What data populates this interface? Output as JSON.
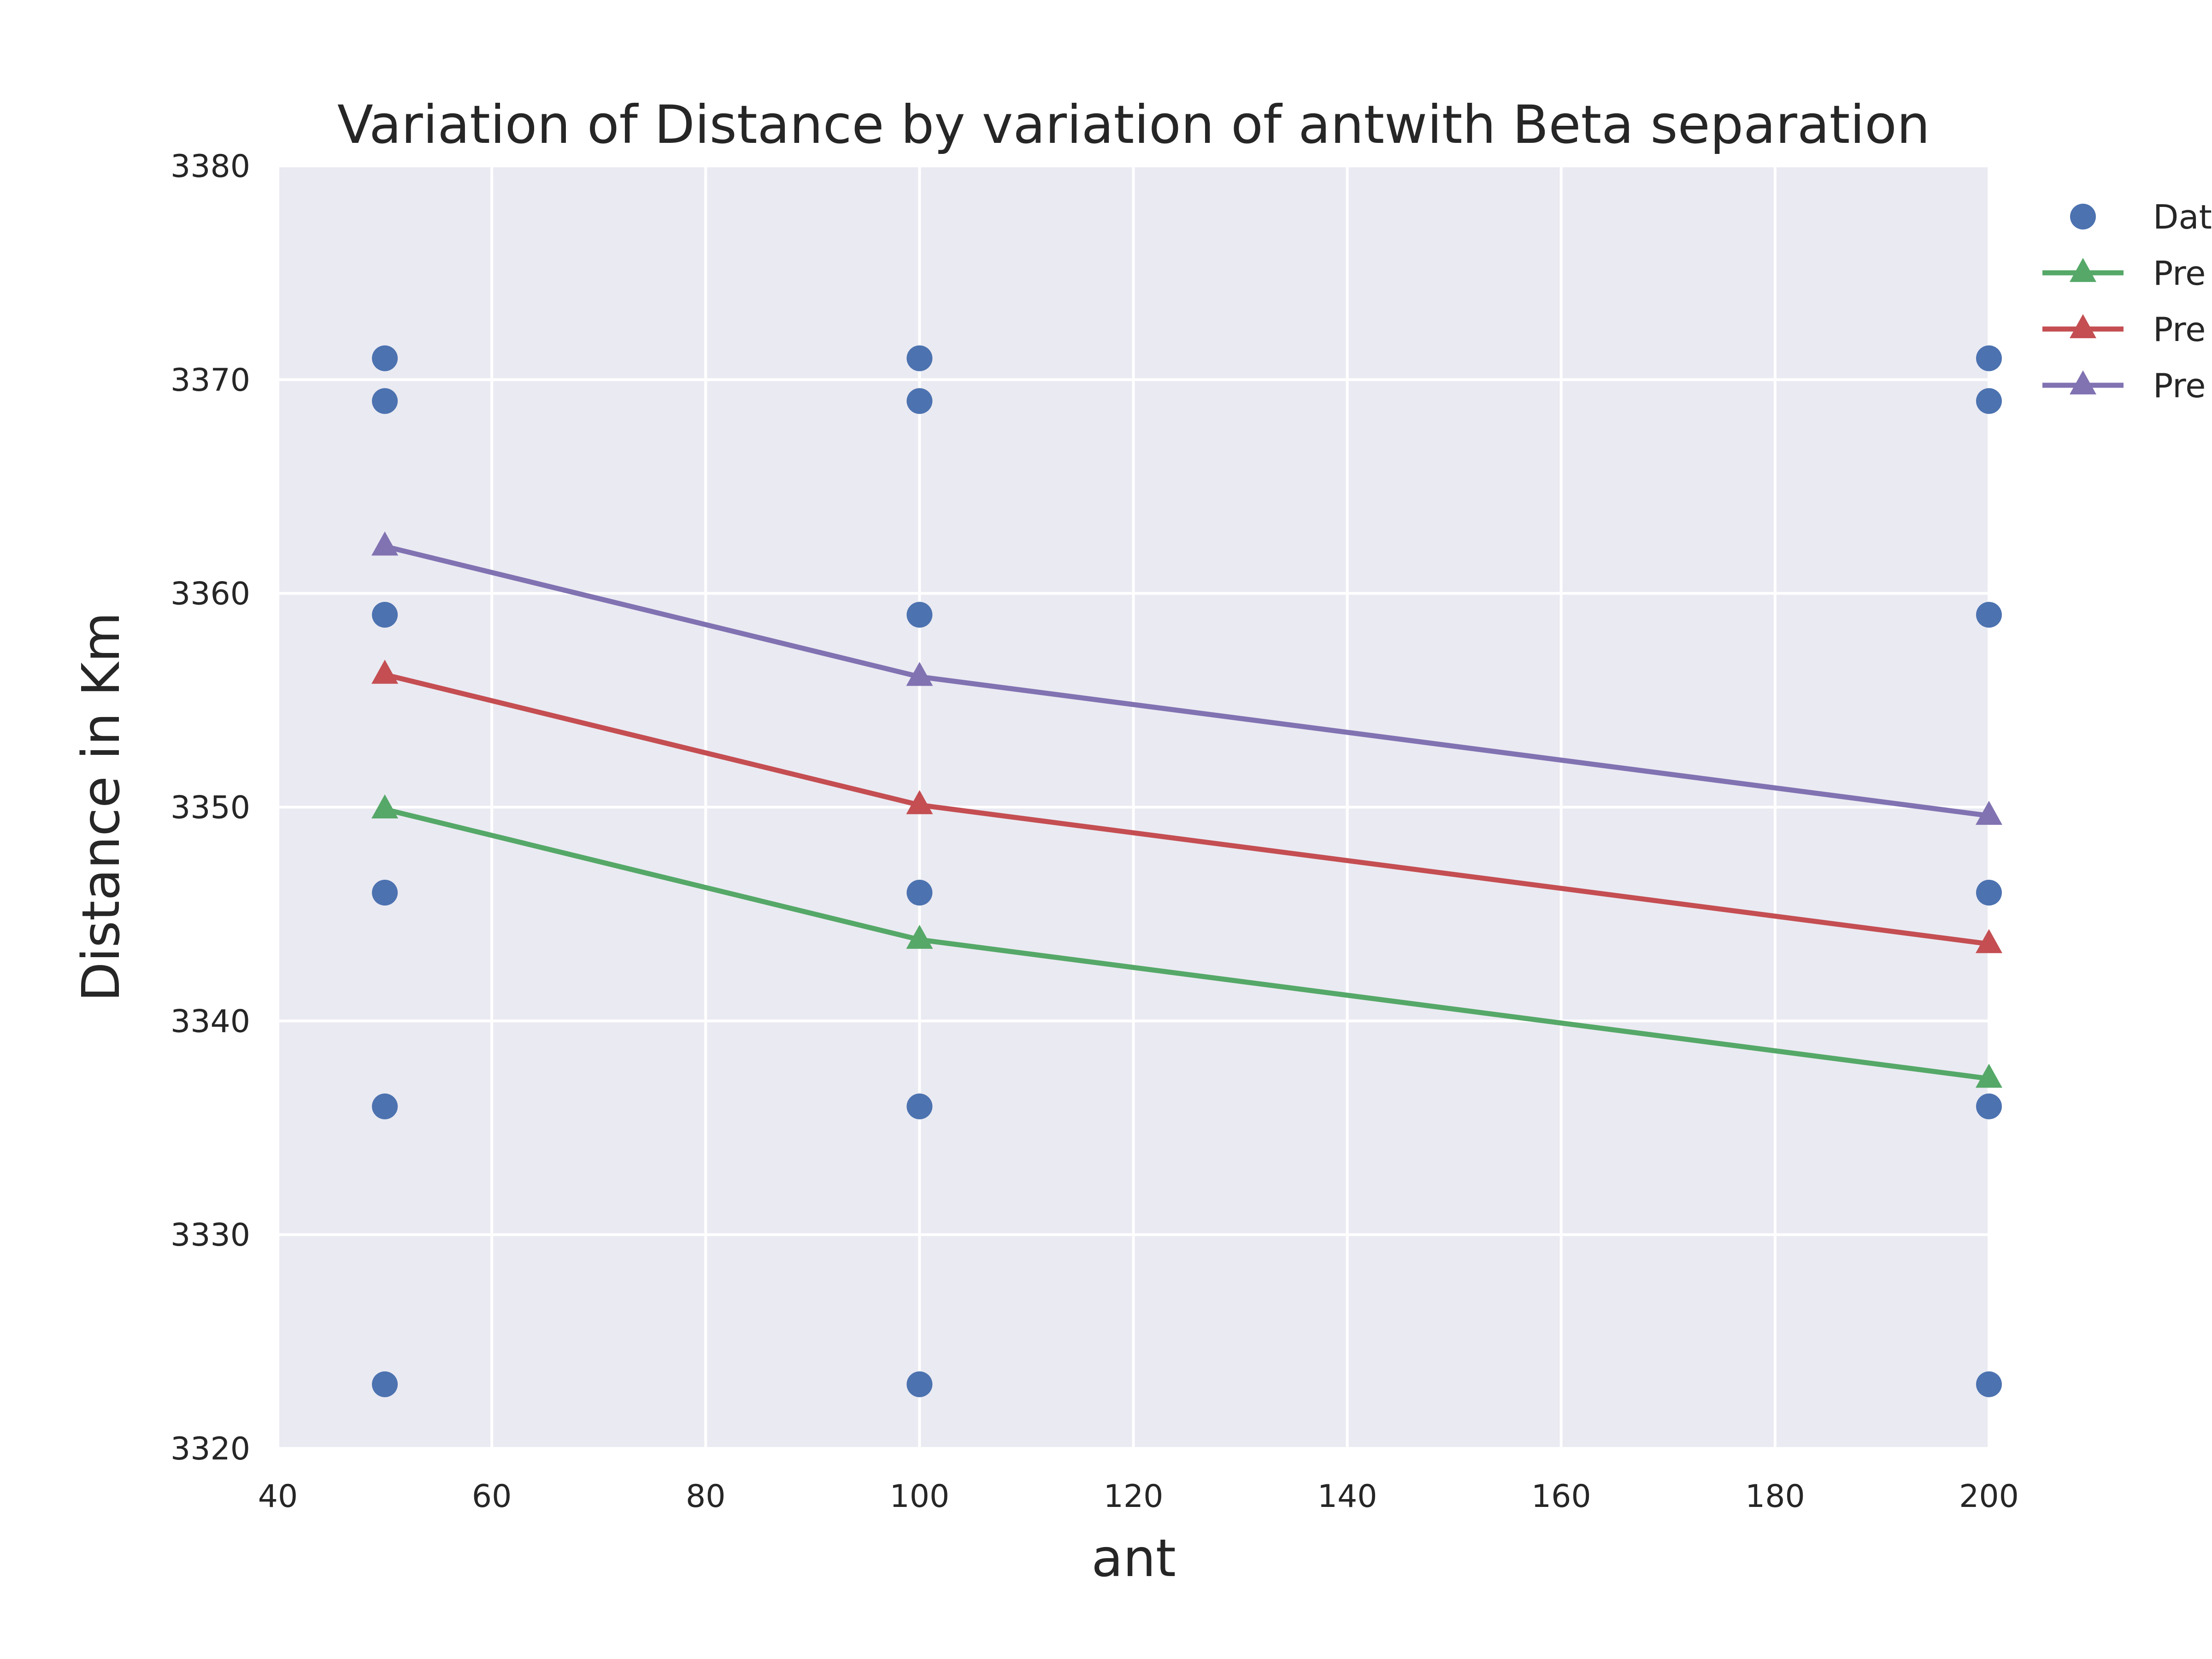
{
  "chart_data": {
    "type": "line",
    "title": "Variation of  Distance by variation of antwith Beta separation",
    "xlabel": "ant",
    "ylabel": "Distance in Km",
    "xlim": [
      40,
      200
    ],
    "ylim": [
      3320,
      3380
    ],
    "xticks": [
      "40",
      "60",
      "80",
      "100",
      "120",
      "140",
      "160",
      "180",
      "200"
    ],
    "yticks": [
      "3320",
      "3330",
      "3340",
      "3350",
      "3360",
      "3370",
      "3380"
    ],
    "grid": true,
    "legend_position": "outside-right",
    "x": [
      50,
      100,
      200
    ],
    "scatter": {
      "label": "Dat",
      "color": "#4C72B0",
      "points": [
        [
          50,
          3371
        ],
        [
          50,
          3369
        ],
        [
          50,
          3359
        ],
        [
          50,
          3346
        ],
        [
          50,
          3336
        ],
        [
          50,
          3323
        ],
        [
          100,
          3371
        ],
        [
          100,
          3369
        ],
        [
          100,
          3359
        ],
        [
          100,
          3346
        ],
        [
          100,
          3336
        ],
        [
          100,
          3323
        ],
        [
          200,
          3371
        ],
        [
          200,
          3369
        ],
        [
          200,
          3359
        ],
        [
          200,
          3346
        ],
        [
          200,
          3336
        ],
        [
          200,
          3323
        ]
      ]
    },
    "series": [
      {
        "label": "Pre",
        "color": "#55A868",
        "marker": "triangle",
        "values": [
          3349.9,
          3343.8,
          3337.3
        ]
      },
      {
        "label": "Pre",
        "color": "#C44E52",
        "marker": "triangle",
        "values": [
          3356.2,
          3350.1,
          3343.6
        ]
      },
      {
        "label": "Pre",
        "color": "#8172B2",
        "marker": "triangle",
        "values": [
          3362.2,
          3356.1,
          3349.6
        ]
      }
    ]
  }
}
